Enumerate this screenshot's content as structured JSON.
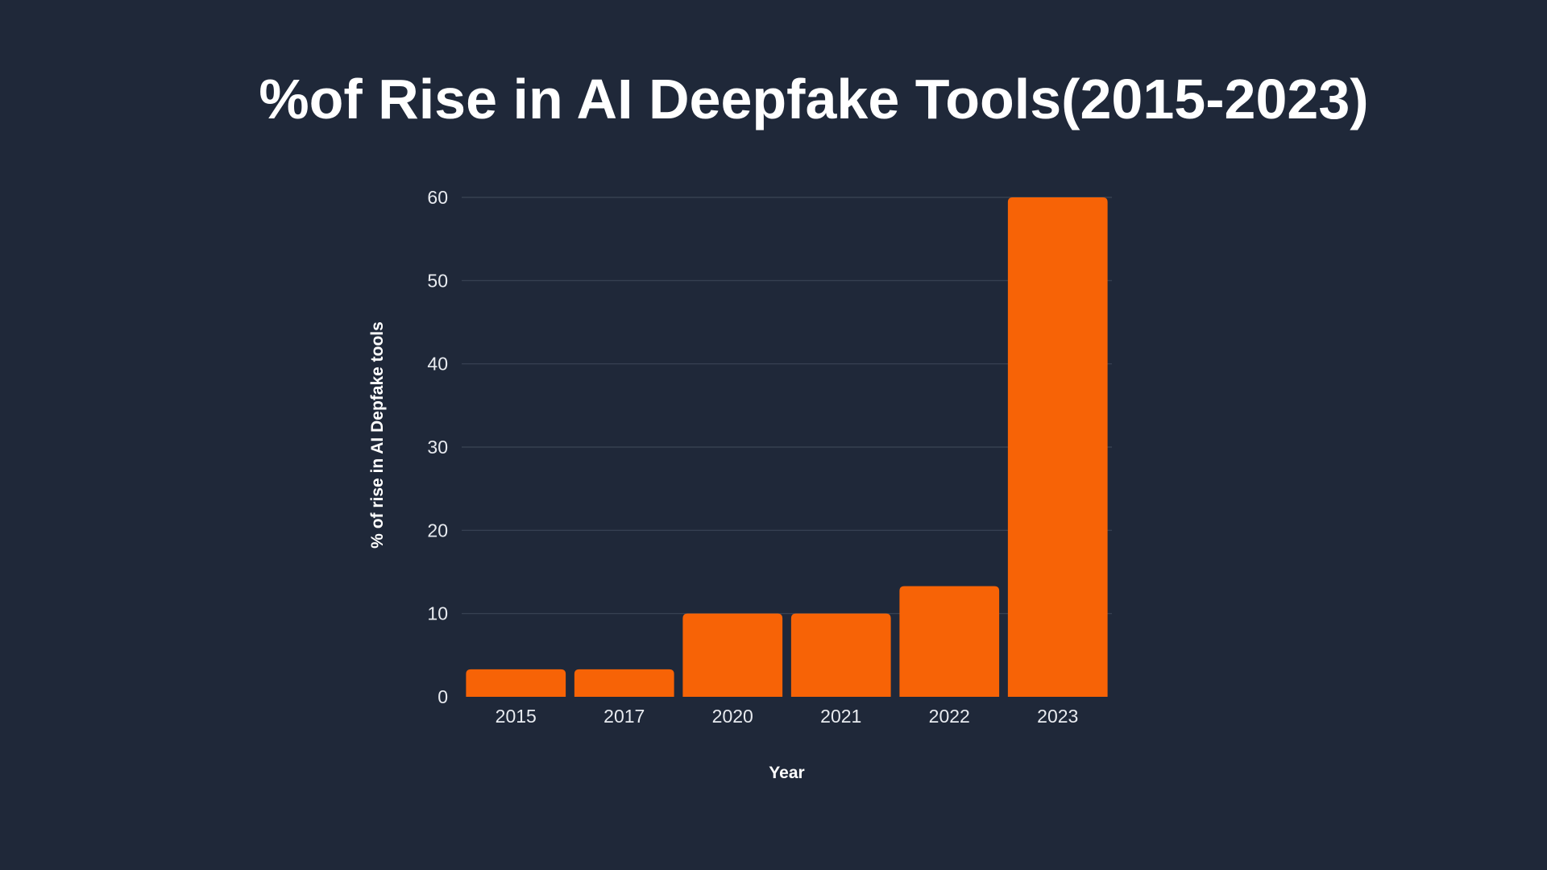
{
  "chart_data": {
    "type": "bar",
    "title": "%of Rise in AI Deepfake Tools(2015-2023)",
    "xlabel": "Year",
    "ylabel": "% of rise in AI Depfake tools",
    "categories": [
      "2015",
      "2017",
      "2020",
      "2021",
      "2022",
      "2023"
    ],
    "values": [
      3.3,
      3.3,
      10,
      10,
      13.3,
      60
    ],
    "ylim": [
      0,
      60
    ],
    "yticks": [
      0,
      10,
      20,
      30,
      40,
      50,
      60
    ],
    "grid": true,
    "legend": "none",
    "colors": {
      "background": "#1f2839",
      "bar": "#f76306",
      "grid": "#3a4456",
      "text": "#ffffff"
    }
  }
}
